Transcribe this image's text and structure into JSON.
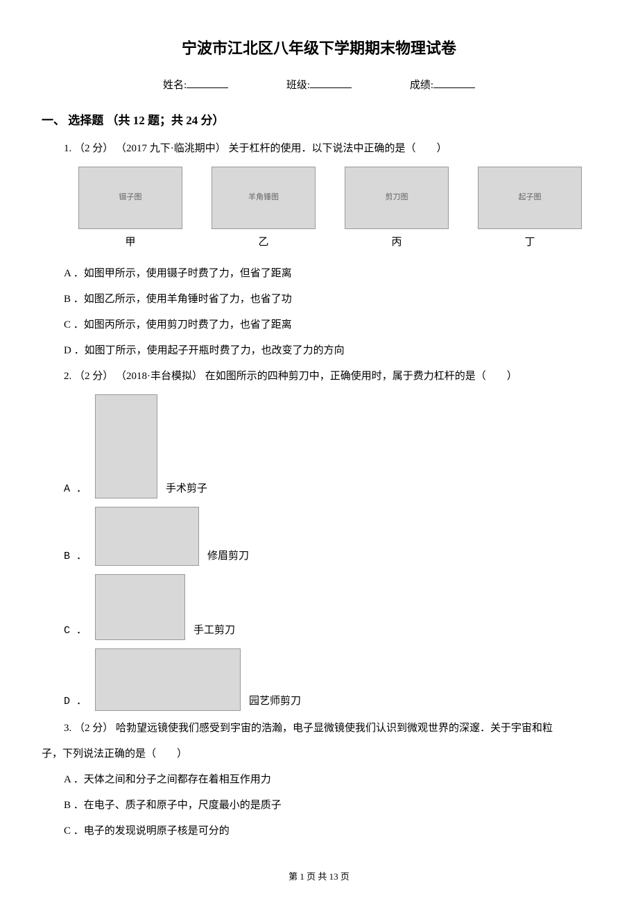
{
  "title": "宁波市江北区八年级下学期期末物理试卷",
  "info": {
    "name_label": "姓名:",
    "class_label": "班级:",
    "score_label": "成绩:"
  },
  "section1": {
    "header": "一、 选择题 （共 12 题；共 24 分）"
  },
  "q1": {
    "header": "1.  （2 分） （2017 九下·临洮期中） 关于杠杆的使用．以下说法中正确的是（　　）",
    "figs": {
      "cap1": "甲",
      "cap2": "乙",
      "cap3": "丙",
      "cap4": "丁",
      "alt1": "镊子图",
      "alt2": "羊角锤图",
      "alt3": "剪刀图",
      "alt4": "起子图"
    },
    "optA": "A ．如图甲所示，使用镊子时费了力，但省了距离",
    "optB": "B ．如图乙所示，使用羊角锤时省了力，也省了功",
    "optC": "C ．如图丙所示，使用剪刀时费了力，也省了距离",
    "optD": "D ．如图丁所示，使用起子开瓶时费了力，也改变了力的方向"
  },
  "q2": {
    "header": "2.  （2 分） （2018·丰台模拟） 在如图所示的四种剪刀中，正确使用时，属于费力杠杆的是（　　）",
    "optA_letter": "A ．",
    "optA_label": "手术剪子",
    "optB_letter": "B ．",
    "optB_label": "修眉剪刀",
    "optC_letter": "C ．",
    "optC_label": "手工剪刀",
    "optD_letter": "D ．",
    "optD_label": "园艺师剪刀"
  },
  "q3": {
    "header_part1": "3.  （2 分）   哈勃望远镜使我们感受到宇宙的浩瀚，电子显微镜使我们认识到微观世界的深邃．关于宇宙和粒",
    "header_part2": "子，下列说法正确的是（　　）",
    "optA": "A ．天体之间和分子之间都存在着相互作用力",
    "optB": "B ．在电子、质子和原子中，尺度最小的是质子",
    "optC": "C ．电子的发现说明原子核是可分的"
  },
  "footer": "第 1 页 共 13 页"
}
